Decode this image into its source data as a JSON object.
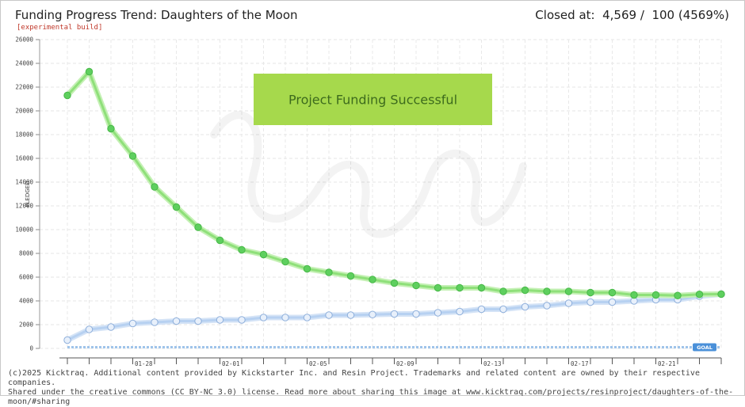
{
  "header": {
    "title": "Funding Progress Trend: Daughters of the Moon",
    "subtitle": "[experimental build]",
    "closed_label": "Closed at:",
    "closed_value": "4,569",
    "closed_goal": "100",
    "closed_percent": "(4569%)"
  },
  "banner": {
    "text": "Project Funding Successful",
    "color": "#a6d94c"
  },
  "footer": {
    "line1": "(c)2025 Kicktraq. Additional content provided by Kickstarter Inc. and Resin Project. Trademarks and related content are owned by their respective companies.",
    "line2": "Shared under the creative commons (CC BY-NC 3.0) license. Read more about sharing this image at www.kicktraq.com/projects/resinproject/daughters-of-the-moon/#sharing"
  },
  "chart_data": {
    "type": "line",
    "ylabel": "PLEDGED",
    "ylim": [
      0,
      26000
    ],
    "yticks": [
      0,
      2000,
      4000,
      6000,
      8000,
      10000,
      12000,
      14000,
      16000,
      18000,
      20000,
      22000,
      24000,
      26000
    ],
    "x_tick_labels": [
      "01-28",
      "02-01",
      "02-05",
      "02-09",
      "02-13",
      "02-17",
      "02-21"
    ],
    "x_tick_label_index": [
      3,
      7,
      11,
      15,
      19,
      23,
      27
    ],
    "grid": true,
    "goal": {
      "label": "GOAL",
      "value": 100,
      "color": "#4a90d9"
    },
    "series": [
      {
        "key": "trend",
        "color": "#5ecf5e",
        "values": [
          21300,
          23300,
          18500,
          16200,
          13600,
          11900,
          10200,
          9100,
          8300,
          7900,
          7300,
          6700,
          6400,
          6100,
          5800,
          5500,
          5300,
          5100,
          5100,
          5100,
          4800,
          4900,
          4800,
          4800,
          4700,
          4700,
          4500,
          4500,
          4450,
          4550,
          4569
        ]
      },
      {
        "key": "pledged",
        "color": "#a9c8ec",
        "values": [
          700,
          1600,
          1800,
          2100,
          2200,
          2300,
          2300,
          2400,
          2400,
          2600,
          2600,
          2600,
          2800,
          2800,
          2850,
          2900,
          2900,
          3000,
          3100,
          3300,
          3300,
          3500,
          3600,
          3800,
          3900,
          3900,
          4000,
          4100,
          4100,
          4400,
          4569
        ]
      }
    ]
  }
}
